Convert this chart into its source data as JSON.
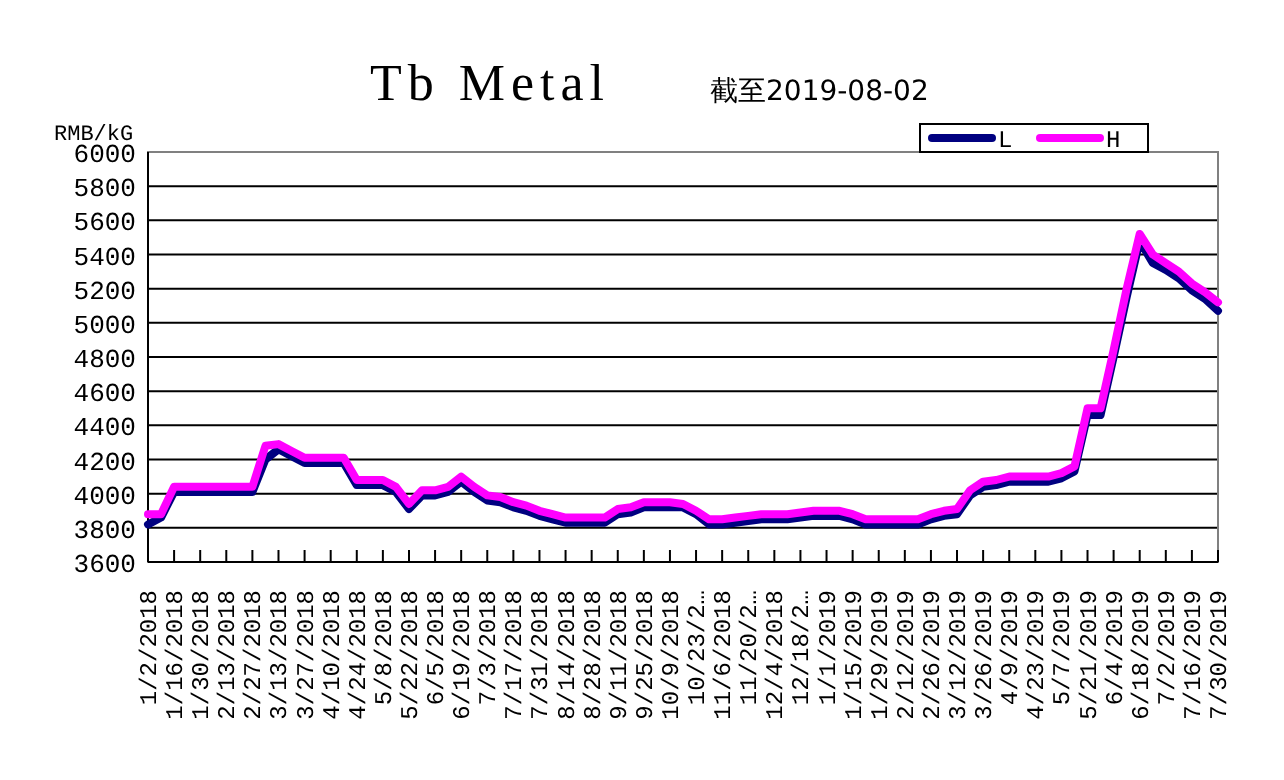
{
  "chart_data": {
    "type": "line",
    "title": "Tb Metal",
    "subtitle": "截至2019-08-02",
    "ylabel": "RMB/kG",
    "categories": [
      "1/2/2018",
      null,
      "1/16/2018",
      null,
      "1/30/2018",
      null,
      "2/13/2018",
      null,
      "2/27/2018",
      null,
      "3/13/2018",
      null,
      "3/27/2018",
      null,
      "4/10/2018",
      null,
      "4/24/2018",
      null,
      "5/8/2018",
      null,
      "5/22/2018",
      null,
      "6/5/2018",
      null,
      "6/19/2018",
      null,
      "7/3/2018",
      null,
      "7/17/2018",
      null,
      "7/31/2018",
      null,
      "8/14/2018",
      null,
      "8/28/2018",
      null,
      "9/11/2018",
      null,
      "9/25/2018",
      null,
      "10/9/2018",
      null,
      "10/23/2…",
      null,
      "11/6/2018",
      null,
      "11/20/2…",
      null,
      "12/4/2018",
      null,
      "12/18/2…",
      null,
      "1/1/2019",
      null,
      "1/15/2019",
      null,
      "1/29/2019",
      null,
      "2/12/2019",
      null,
      "2/26/2019",
      null,
      "3/12/2019",
      null,
      "3/26/2019",
      null,
      "4/9/2019",
      null,
      "4/23/2019",
      null,
      "5/7/2019",
      null,
      "5/21/2019",
      null,
      "6/4/2019",
      null,
      "6/18/2019",
      null,
      "7/2/2019",
      null,
      "7/16/2019",
      null,
      "7/30/2019"
    ],
    "series": [
      {
        "name": "L",
        "color": "#000080",
        "values": [
          3820,
          3860,
          4010,
          4010,
          4010,
          4010,
          4010,
          4010,
          4010,
          4200,
          4260,
          4220,
          4180,
          4180,
          4180,
          4180,
          4050,
          4050,
          4050,
          4010,
          3910,
          3990,
          3990,
          4010,
          4070,
          4010,
          3960,
          3950,
          3920,
          3900,
          3870,
          3850,
          3830,
          3830,
          3830,
          3830,
          3880,
          3890,
          3920,
          3920,
          3920,
          3920,
          3880,
          3820,
          3820,
          3830,
          3840,
          3850,
          3850,
          3850,
          3860,
          3870,
          3870,
          3870,
          3850,
          3820,
          3820,
          3820,
          3820,
          3820,
          3850,
          3870,
          3880,
          3990,
          4040,
          4050,
          4070,
          4070,
          4070,
          4070,
          4090,
          4130,
          4460,
          4460,
          4800,
          5150,
          5480,
          5350,
          5310,
          5260,
          5190,
          5140,
          5070
        ]
      },
      {
        "name": "H",
        "color": "#ff00ff",
        "values": [
          3880,
          3880,
          4040,
          4040,
          4040,
          4040,
          4040,
          4040,
          4040,
          4280,
          4290,
          4250,
          4210,
          4210,
          4210,
          4210,
          4080,
          4080,
          4080,
          4040,
          3940,
          4020,
          4020,
          4040,
          4100,
          4040,
          3990,
          3980,
          3950,
          3930,
          3900,
          3880,
          3860,
          3860,
          3860,
          3860,
          3910,
          3920,
          3950,
          3950,
          3950,
          3940,
          3900,
          3850,
          3850,
          3860,
          3870,
          3880,
          3880,
          3880,
          3890,
          3900,
          3900,
          3900,
          3880,
          3850,
          3850,
          3850,
          3850,
          3850,
          3880,
          3900,
          3910,
          4020,
          4070,
          4080,
          4100,
          4100,
          4100,
          4100,
          4120,
          4160,
          4500,
          4500,
          4840,
          5200,
          5520,
          5400,
          5350,
          5300,
          5230,
          5180,
          5120
        ]
      }
    ],
    "ylim": [
      3600,
      6000
    ],
    "yticks": [
      3600,
      3800,
      4000,
      4200,
      4400,
      4600,
      4800,
      5000,
      5200,
      5400,
      5600,
      5800,
      6000
    ],
    "grid": "y",
    "legend": "top right"
  }
}
